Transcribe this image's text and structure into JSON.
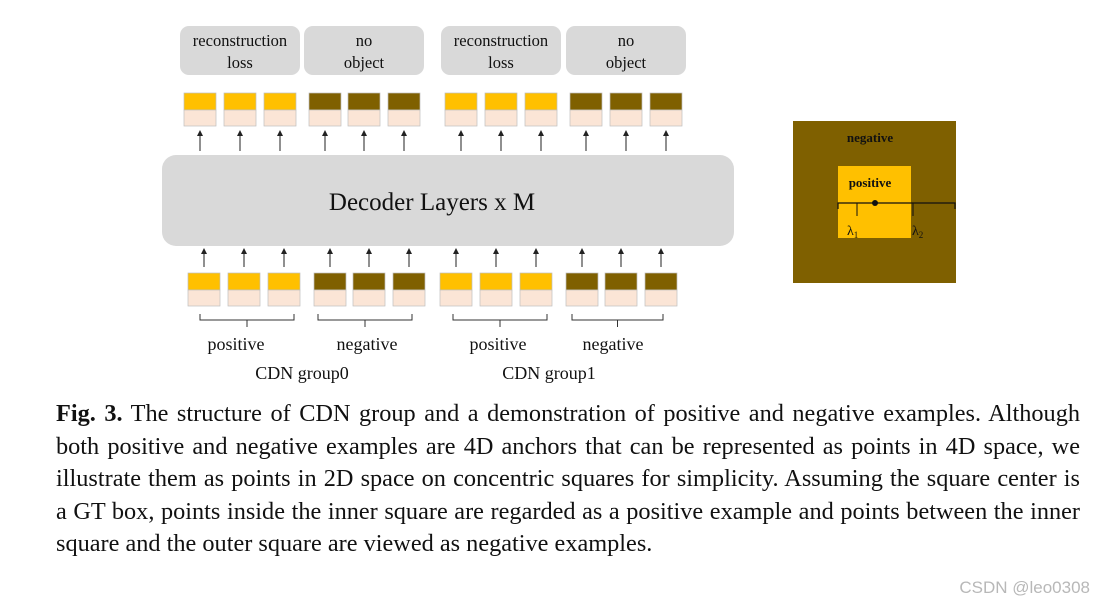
{
  "diagram": {
    "decoder_label": "Decoder Layers x M",
    "output_labels": [
      {
        "line1": "reconstruction",
        "line2": "loss"
      },
      {
        "line1": "no",
        "line2": "object"
      },
      {
        "line1": "reconstruction",
        "line2": "loss"
      },
      {
        "line1": "no",
        "line2": "object"
      }
    ],
    "group_sublabels": [
      "positive",
      "negative",
      "positive",
      "negative"
    ],
    "group_names": [
      "CDN group0",
      "CDN group1"
    ],
    "inset": {
      "outer_label": "negative",
      "inner_label": "positive",
      "lambda1": "λ",
      "lambda1_sub": "1",
      "lambda2": "λ",
      "lambda2_sub": "2"
    },
    "colors": {
      "positive": "#ffc000",
      "negative": "#7f6000",
      "query_bottom": "#fbe5d6",
      "box_gray": "#d9d9d9",
      "inset_bg": "#7f6000",
      "inset_inner": "#ffc000"
    }
  },
  "caption": {
    "label": "Fig. 3.",
    "text": "The structure of CDN group and a demonstration of positive and negative examples. Although both positive and negative examples are 4D anchors that can be represented as points in 4D space, we illustrate them as points in 2D space on concentric squares for simplicity. Assuming the square center is a GT box, points inside the inner square are regarded as a positive example and points between the inner square and the outer square are viewed as negative examples."
  },
  "watermark": "CSDN @leo0308"
}
